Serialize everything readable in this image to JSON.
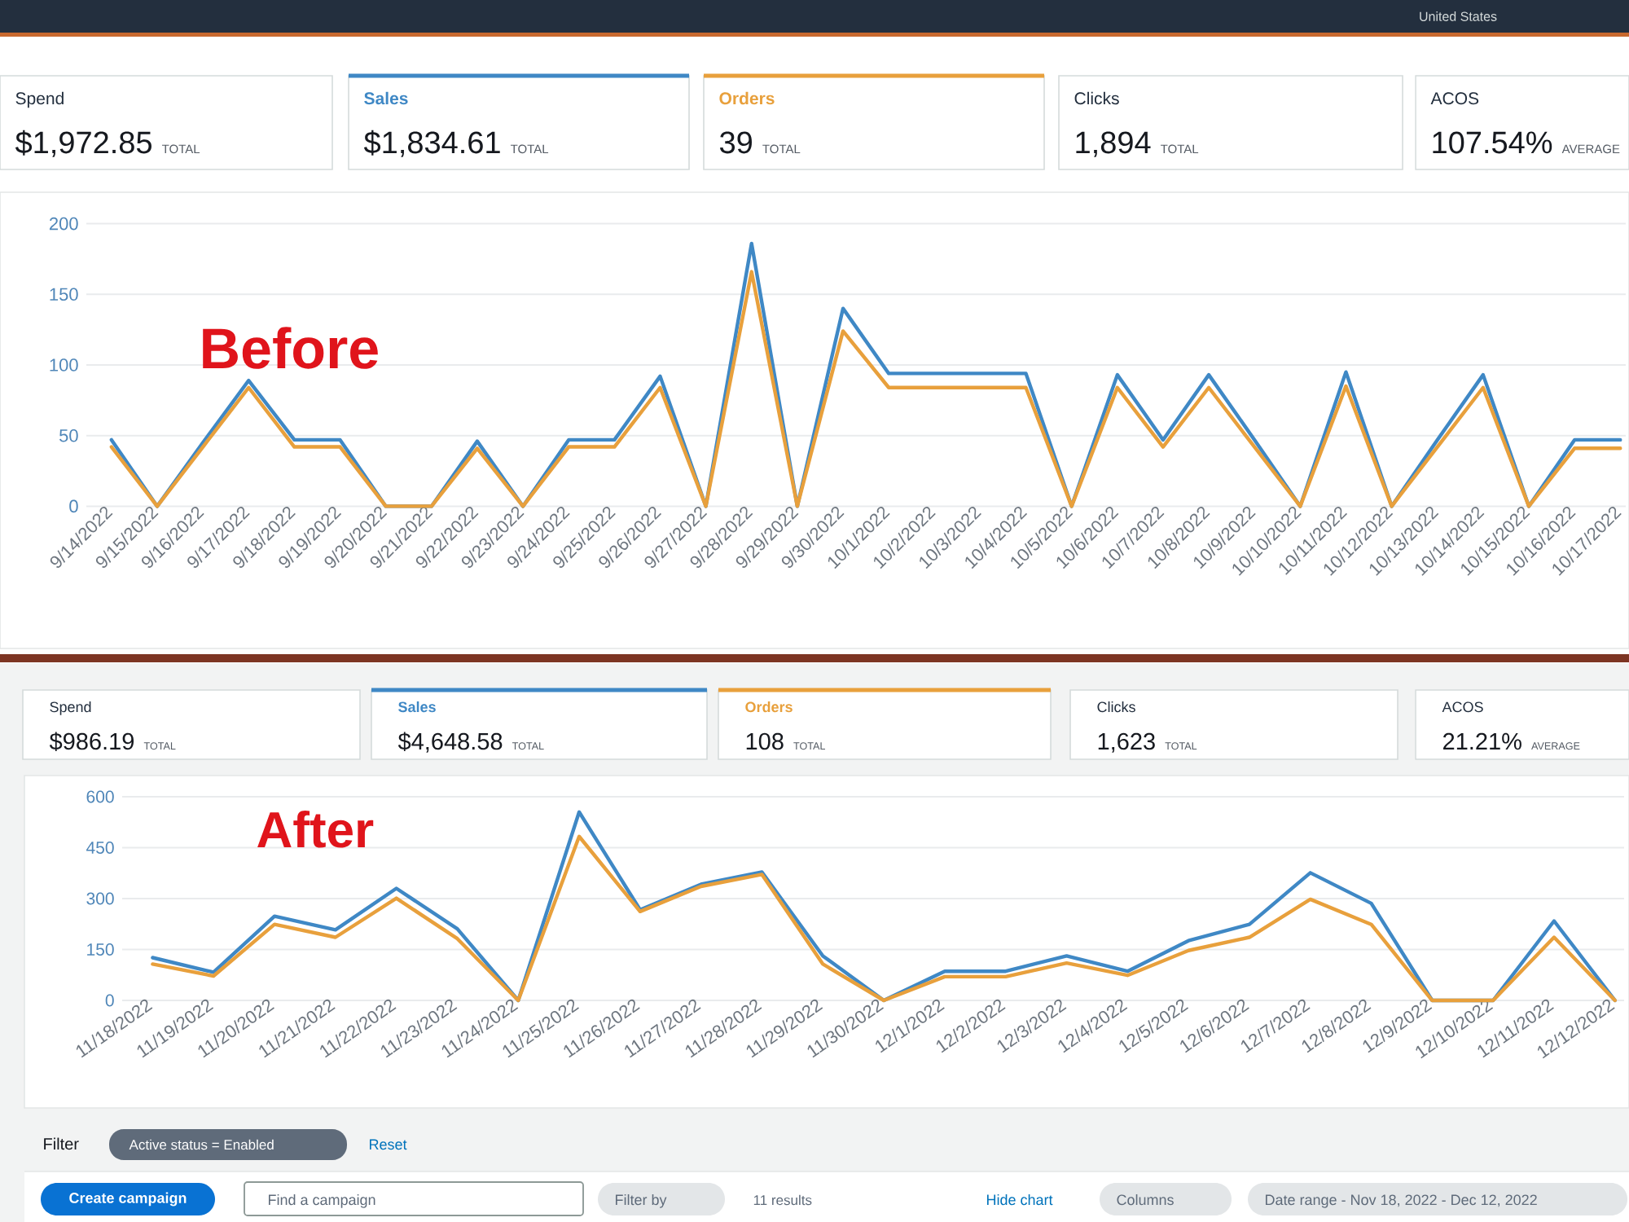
{
  "chart_data": [
    {
      "type": "line",
      "title": "Before",
      "categories": [
        "9/14/2022",
        "9/15/2022",
        "9/16/2022",
        "9/17/2022",
        "9/18/2022",
        "9/19/2022",
        "9/20/2022",
        "9/21/2022",
        "9/22/2022",
        "9/23/2022",
        "9/24/2022",
        "9/25/2022",
        "9/26/2022",
        "9/27/2022",
        "9/28/2022",
        "9/29/2022",
        "9/30/2022",
        "10/1/2022",
        "10/2/2022",
        "10/3/2022",
        "10/4/2022",
        "10/5/2022",
        "10/6/2022",
        "10/7/2022",
        "10/8/2022",
        "10/9/2022",
        "10/10/2022",
        "10/11/2022",
        "10/12/2022",
        "10/13/2022",
        "10/14/2022",
        "10/15/2022",
        "10/16/2022",
        "10/17/2022"
      ],
      "series": [
        {
          "name": "Sales",
          "color": "#3f88c5",
          "values": [
            47,
            0,
            45,
            89,
            47,
            47,
            0,
            0,
            46,
            0,
            47,
            47,
            92,
            0,
            186,
            0,
            140,
            94,
            94,
            94,
            94,
            0,
            93,
            47,
            93,
            47,
            0,
            95,
            0,
            47,
            93,
            0,
            47,
            47
          ]
        },
        {
          "name": "Orders",
          "color": "#e8a03c",
          "values": [
            42,
            0,
            42,
            84,
            42,
            42,
            0,
            0,
            41,
            0,
            42,
            42,
            84,
            0,
            166,
            0,
            124,
            84,
            84,
            84,
            84,
            0,
            84,
            42,
            84,
            42,
            0,
            85,
            0,
            42,
            84,
            0,
            41,
            41
          ]
        }
      ],
      "ylim": [
        0,
        200
      ],
      "yticks": [
        0,
        50,
        100,
        150,
        200
      ],
      "grid": "y",
      "legend": "top",
      "annotations": [
        "United States",
        "Spend",
        "$1,972.85",
        "TOTAL",
        "$1,834.61",
        "TOTAL",
        "39",
        "TOTAL",
        "Clicks",
        "1,894",
        "TOTAL",
        "ACOS",
        "107.54%",
        "AVERAGE"
      ]
    },
    {
      "type": "line",
      "title": "After",
      "categories": [
        "11/18/2022",
        "11/19/2022",
        "11/20/2022",
        "11/21/2022",
        "11/22/2022",
        "11/23/2022",
        "11/24/2022",
        "11/25/2022",
        "11/26/2022",
        "11/27/2022",
        "11/28/2022",
        "11/29/2022",
        "11/30/2022",
        "12/1/2022",
        "12/2/2022",
        "12/3/2022",
        "12/4/2022",
        "12/5/2022",
        "12/6/2022",
        "12/7/2022",
        "12/8/2022",
        "12/9/2022",
        "12/10/2022",
        "12/11/2022",
        "12/12/2022"
      ],
      "series": [
        {
          "name": "Sales",
          "color": "#3f88c5",
          "values": [
            126,
            83,
            248,
            208,
            330,
            211,
            0,
            555,
            267,
            342,
            378,
            131,
            0,
            86,
            86,
            131,
            86,
            176,
            224,
            376,
            286,
            0,
            0,
            234,
            0
          ]
        },
        {
          "name": "Orders",
          "color": "#e8a03c",
          "values": [
            107,
            72,
            224,
            186,
            301,
            182,
            0,
            483,
            262,
            336,
            371,
            107,
            0,
            70,
            70,
            110,
            74,
            147,
            186,
            298,
            224,
            0,
            0,
            186,
            0
          ]
        }
      ],
      "ylim": [
        0,
        600
      ],
      "yticks": [
        0,
        150,
        300,
        450,
        600
      ],
      "grid": "y",
      "legend": "top",
      "annotations": [
        "Spend",
        "$986.19",
        "TOTAL",
        "$4,648.58",
        "TOTAL",
        "108",
        "TOTAL",
        "Clicks",
        "1,623",
        "TOTAL",
        "ACOS",
        "21.21%",
        "AVERAGE",
        "Filter",
        "Active status = Enabled",
        "Reset",
        "Create campaign",
        "Find a campaign",
        "Filter by",
        "11 results",
        "Hide chart",
        "Columns",
        "Date range - Nov 18, 2022 - Dec 12, 2022"
      ]
    }
  ]
}
